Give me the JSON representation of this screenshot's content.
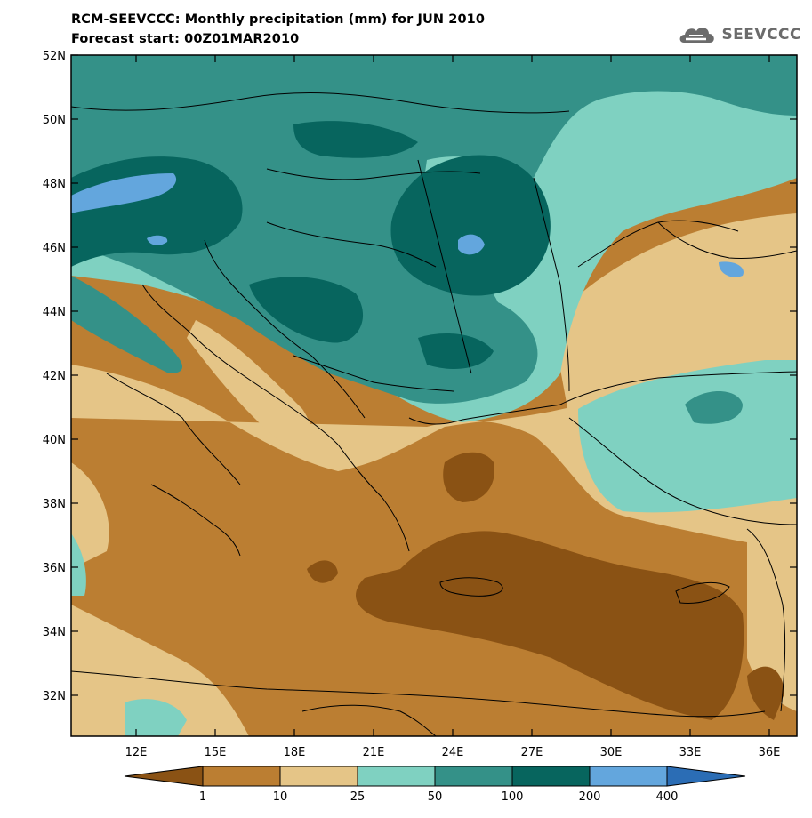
{
  "header": {
    "title": "RCM-SEEVCCC: Monthly precipitation (mm) for JUN 2010",
    "subtitle": "Forecast start: 00Z01MAR2010",
    "logo_text": "SEEVCCC"
  },
  "map": {
    "lat_labels": [
      "52N",
      "50N",
      "48N",
      "46N",
      "44N",
      "42N",
      "40N",
      "38N",
      "36N",
      "34N",
      "32N"
    ],
    "lon_labels": [
      "12E",
      "15E",
      "18E",
      "21E",
      "24E",
      "27E",
      "30E",
      "33E",
      "36E"
    ]
  },
  "colorbar": {
    "labels": [
      "1",
      "10",
      "25",
      "50",
      "100",
      "200",
      "400"
    ],
    "colors": [
      "#8a5214",
      "#bb7e32",
      "#e5c587",
      "#7fd1c1",
      "#349188",
      "#07655e",
      "#63a6dd",
      "#2b6db5"
    ]
  }
}
